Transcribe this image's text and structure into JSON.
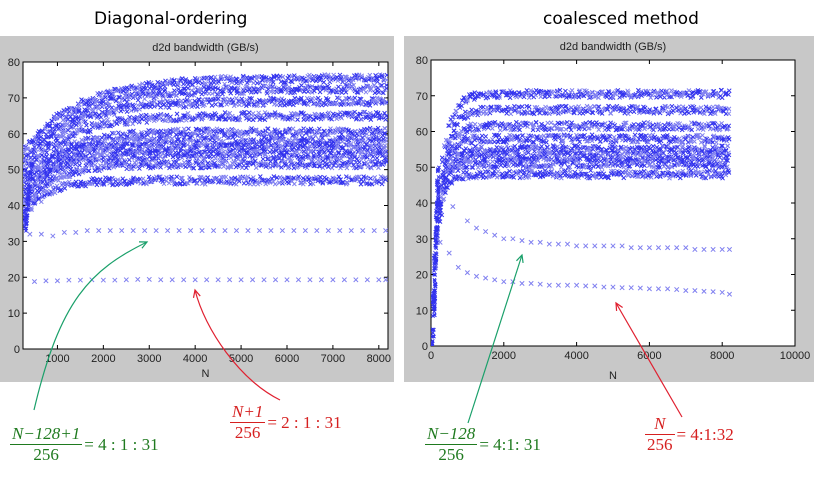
{
  "colors": {
    "marker": "#3333ee",
    "marker_light": "#8080f0",
    "panel": "#c8c8c8",
    "green_arrow": "#1aa06a",
    "red_arrow": "#e02030",
    "green_text": "#1f7a1f",
    "red_text": "#d62020"
  },
  "chart_data": [
    {
      "type": "scatter",
      "panel_title": "Diagonal-ordering",
      "title": "d2d bandwidth (GB/s)",
      "xlabel": "N",
      "ylabel": "",
      "xlim": [
        250,
        8200
      ],
      "ylim": [
        0,
        80
      ],
      "xticks": [
        1000,
        2000,
        3000,
        4000,
        5000,
        6000,
        7000,
        8000
      ],
      "xtick_labels": [
        "1000",
        "2000",
        "3000",
        "4000",
        "5000",
        "6000",
        "7000",
        "8000"
      ],
      "yticks": [
        0,
        10,
        20,
        30,
        40,
        50,
        60,
        70,
        80
      ],
      "ytick_labels": [
        "0",
        "10",
        "20",
        "30",
        "40",
        "50",
        "60",
        "70",
        "80"
      ],
      "marker": "x",
      "bands": [
        {
          "name": "band-76",
          "plateau": 75.5,
          "rise": 1200,
          "start": 55
        },
        {
          "name": "band-73",
          "plateau": 72.5,
          "rise": 1100,
          "start": 52
        },
        {
          "name": "band-69",
          "plateau": 69,
          "rise": 1000,
          "start": 50
        },
        {
          "name": "band-65",
          "plateau": 65,
          "rise": 900,
          "start": 48
        },
        {
          "name": "band-61",
          "plateau": 60.5,
          "rise": 800,
          "start": 46
        },
        {
          "name": "band-58",
          "plateau": 58,
          "rise": 700,
          "start": 44
        },
        {
          "name": "band-56",
          "plateau": 56,
          "rise": 650,
          "start": 42
        },
        {
          "name": "band-54",
          "plateau": 54,
          "rise": 600,
          "start": 40
        },
        {
          "name": "band-51",
          "plateau": 51.5,
          "rise": 600,
          "start": 38
        },
        {
          "name": "band-47",
          "plateau": 47,
          "rise": 500,
          "start": 36
        }
      ],
      "series": [
        {
          "name": "sparse-33",
          "x": [
            400,
            650,
            900,
            1150,
            1400,
            1650,
            1900,
            2150,
            2400,
            2650,
            2900,
            3150,
            3400,
            3650,
            3900,
            4150,
            4400,
            4650,
            4900,
            5150,
            5400,
            5650,
            5900,
            6150,
            6400,
            6650,
            6900,
            7150,
            7400,
            7650,
            7900,
            8150
          ],
          "y": [
            32,
            32,
            31.5,
            32.5,
            32.5,
            33,
            33,
            33,
            33,
            33,
            33,
            33,
            33,
            33,
            33,
            33,
            33,
            33,
            33,
            33,
            33,
            33,
            33,
            33,
            33,
            33,
            33,
            33,
            33,
            33,
            33,
            33
          ]
        },
        {
          "name": "sparse-19",
          "x": [
            500,
            750,
            1000,
            1250,
            1500,
            1750,
            2000,
            2250,
            2500,
            2750,
            3000,
            3250,
            3500,
            3750,
            4000,
            4250,
            4500,
            4750,
            5000,
            5250,
            5500,
            5750,
            6000,
            6250,
            6500,
            6750,
            7000,
            7250,
            7500,
            7750,
            8000,
            8150
          ],
          "y": [
            18.8,
            19,
            19,
            19.2,
            19.2,
            19.3,
            19.2,
            19.2,
            19.3,
            19.4,
            19.4,
            19.3,
            19.3,
            19.3,
            19.3,
            19.3,
            19.3,
            19.3,
            19.3,
            19.3,
            19.3,
            19.3,
            19.3,
            19.3,
            19.3,
            19.3,
            19.3,
            19.3,
            19.3,
            19.3,
            19.3,
            19.3
          ]
        }
      ],
      "annotations": [
        {
          "name": "green-annotation",
          "points_to": [
            3000,
            30
          ],
          "color": "green",
          "formula_numerator": "N−128+1",
          "formula_denominator": "256",
          "formula_result": "= 4 : 1 : 31"
        },
        {
          "name": "red-annotation",
          "points_to": [
            4000,
            17
          ],
          "color": "red",
          "formula_numerator": "N+1",
          "formula_denominator": "256",
          "formula_result": "= 2 : 1 : 31"
        }
      ]
    },
    {
      "type": "scatter",
      "panel_title": "coalesced method",
      "title": "d2d bandwidth (GB/s)",
      "xlabel": "N",
      "ylabel": "",
      "xlim": [
        0,
        10000
      ],
      "ylim": [
        0,
        80
      ],
      "xticks": [
        0,
        2000,
        4000,
        6000,
        8000,
        10000
      ],
      "xtick_labels": [
        "0",
        "2000",
        "4000",
        "6000",
        "8000",
        "10000"
      ],
      "yticks": [
        0,
        10,
        20,
        30,
        40,
        50,
        60,
        70,
        80
      ],
      "ytick_labels": [
        "0",
        "10",
        "20",
        "30",
        "40",
        "50",
        "60",
        "70",
        "80"
      ],
      "marker": "x",
      "bands": [
        {
          "name": "band-71",
          "plateau": 70.5,
          "rise": 250,
          "start": 0,
          "xmax": 8200
        },
        {
          "name": "band-66",
          "plateau": 66,
          "rise": 250,
          "start": 0,
          "xmax": 8200
        },
        {
          "name": "band-62",
          "plateau": 61.5,
          "rise": 220,
          "start": 0,
          "xmax": 8200
        },
        {
          "name": "band-58",
          "plateau": 58,
          "rise": 200,
          "start": 0,
          "xmax": 8200
        },
        {
          "name": "band-55",
          "plateau": 55,
          "rise": 200,
          "start": 0,
          "xmax": 8200
        },
        {
          "name": "band-53",
          "plateau": 53,
          "rise": 200,
          "start": 0,
          "xmax": 8200
        },
        {
          "name": "band-51",
          "plateau": 51,
          "rise": 180,
          "start": 0,
          "xmax": 8200
        },
        {
          "name": "band-48",
          "plateau": 48,
          "rise": 180,
          "start": 0,
          "xmax": 8200
        }
      ],
      "series": [
        {
          "name": "decay-upper",
          "x": [
            600,
            1000,
            1250,
            1500,
            1750,
            2000,
            2250,
            2500,
            2750,
            3000,
            3250,
            3500,
            3750,
            4000,
            4250,
            4500,
            4750,
            5000,
            5250,
            5500,
            5750,
            6000,
            6250,
            6500,
            6750,
            7000,
            7250,
            7500,
            7750,
            8000,
            8200
          ],
          "y": [
            39,
            35,
            33,
            32,
            31,
            30,
            30,
            29.5,
            29,
            29,
            28.5,
            28.5,
            28.5,
            28,
            28,
            28,
            28,
            28,
            28,
            27.5,
            27.5,
            27.5,
            27.5,
            27.5,
            27.5,
            27.5,
            27,
            27,
            27,
            27,
            27
          ]
        },
        {
          "name": "decay-lower",
          "x": [
            250,
            500,
            750,
            1000,
            1250,
            1500,
            1750,
            2000,
            2250,
            2500,
            2750,
            3000,
            3250,
            3500,
            3750,
            4000,
            4250,
            4500,
            4750,
            5000,
            5250,
            5500,
            5750,
            6000,
            6250,
            6500,
            6750,
            7000,
            7250,
            7500,
            7750,
            8000,
            8200
          ],
          "y": [
            29,
            26,
            22,
            20.5,
            19.5,
            19,
            18.5,
            18,
            18,
            17.5,
            17.5,
            17.3,
            17,
            17,
            17,
            17,
            16.8,
            16.8,
            16.5,
            16.5,
            16.3,
            16.3,
            16.2,
            16,
            16,
            16,
            15.8,
            15.5,
            15.5,
            15.3,
            15.2,
            15,
            14.5
          ]
        }
      ],
      "annotations": [
        {
          "name": "green-annotation",
          "points_to": [
            2500,
            26
          ],
          "color": "green",
          "formula_numerator": "N−128",
          "formula_denominator": "256",
          "formula_result": "= 4:1: 31"
        },
        {
          "name": "red-annotation",
          "points_to": [
            5000,
            13
          ],
          "color": "red",
          "formula_numerator": "N",
          "formula_denominator": "256",
          "formula_result": "= 4:1:32"
        }
      ]
    }
  ]
}
